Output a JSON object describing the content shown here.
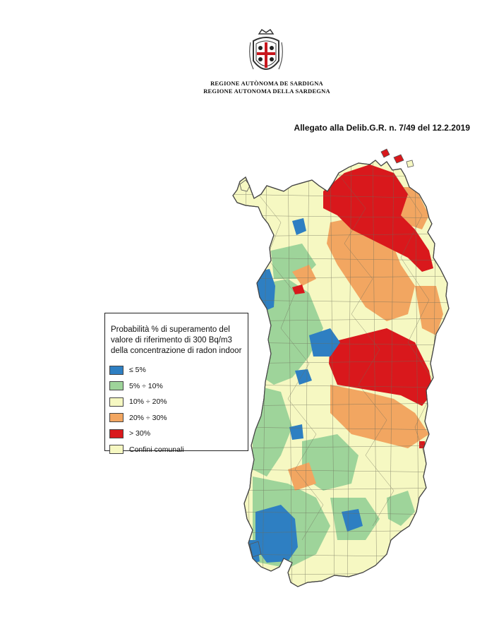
{
  "header": {
    "emblem_icon": "sardinia-coat-of-arms-icon",
    "region_name_line1": "REGIONE AUTÒNOMA DE SARDIGNA",
    "region_name_line2": "REGIONE AUTONOMA DELLA SARDEGNA",
    "reference": "Allegato alla Delib.G.R. n. 7/49 del 12.2.2019"
  },
  "legend": {
    "title_line1": "Probabilità % di superamento del",
    "title_line2": "valore di riferimento di 300 Bq/m3",
    "title_line3": "della concentrazione di radon indoor",
    "items": [
      {
        "label": "≤ 5%",
        "color": "#2e7fc2"
      },
      {
        "label": "5% ÷ 10%",
        "color": "#9ed49a"
      },
      {
        "label": "10% ÷ 20%",
        "color": "#f6f8c2"
      },
      {
        "label": "20% ÷ 30%",
        "color": "#f2a661"
      },
      {
        "label": "> 30%",
        "color": "#d9181c"
      },
      {
        "label": "Confini comunali",
        "color": "#f6f8c2"
      }
    ]
  },
  "map": {
    "colors": {
      "base": "#f6f8c2",
      "green": "#9ed49a",
      "blue": "#2e7fc2",
      "orange": "#f2a661",
      "red": "#d9181c",
      "border": "#6d6d5a"
    }
  }
}
